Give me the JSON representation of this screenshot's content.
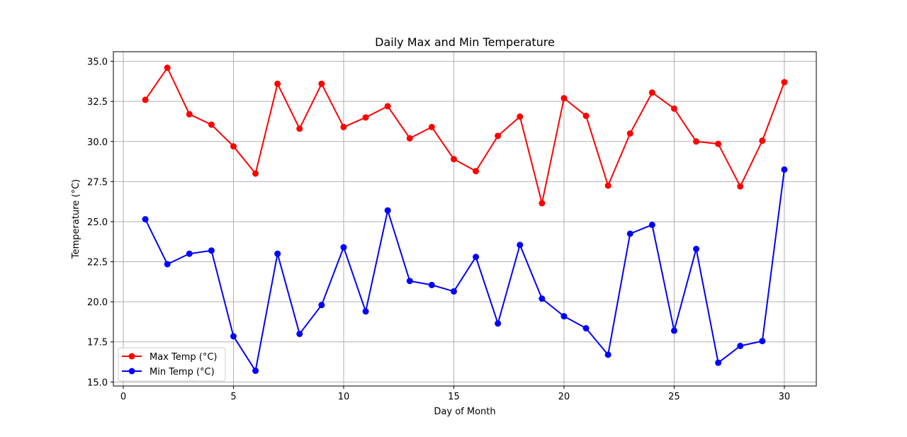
{
  "chart_data": {
    "type": "line",
    "title": "Daily Max and Min Temperature",
    "xlabel": "Day of Month",
    "ylabel": "Temperature (°C)",
    "xlim": [
      -0.45,
      31.45
    ],
    "ylim": [
      14.75,
      35.6
    ],
    "xticks": [
      0,
      5,
      10,
      15,
      20,
      25,
      30
    ],
    "yticks": [
      15.0,
      17.5,
      20.0,
      22.5,
      25.0,
      27.5,
      30.0,
      32.5,
      35.0
    ],
    "grid": true,
    "legend_position": "lower-left",
    "x": [
      1,
      2,
      3,
      4,
      5,
      6,
      7,
      8,
      9,
      10,
      11,
      12,
      13,
      14,
      15,
      16,
      17,
      18,
      19,
      20,
      21,
      22,
      23,
      24,
      25,
      26,
      27,
      28,
      29,
      30
    ],
    "series": [
      {
        "name": "Max Temp (°C)",
        "color": "#ff0000",
        "marker": "circle",
        "values": [
          32.6,
          34.6,
          31.7,
          31.05,
          29.7,
          28.0,
          33.6,
          30.8,
          33.6,
          30.9,
          31.5,
          32.2,
          30.2,
          30.9,
          28.9,
          28.15,
          30.35,
          31.55,
          26.15,
          32.7,
          31.6,
          27.25,
          30.5,
          33.05,
          32.05,
          30.0,
          29.85,
          27.2,
          30.05,
          33.7
        ]
      },
      {
        "name": "Min Temp (°C)",
        "color": "#0000ff",
        "marker": "circle",
        "values": [
          25.15,
          22.35,
          23.0,
          23.2,
          17.85,
          15.7,
          23.0,
          18.0,
          19.8,
          23.4,
          19.4,
          25.7,
          21.3,
          21.05,
          20.65,
          22.8,
          18.65,
          23.55,
          20.2,
          19.1,
          18.35,
          16.7,
          24.25,
          24.8,
          18.2,
          23.3,
          16.2,
          17.25,
          17.55,
          28.25
        ]
      }
    ]
  }
}
